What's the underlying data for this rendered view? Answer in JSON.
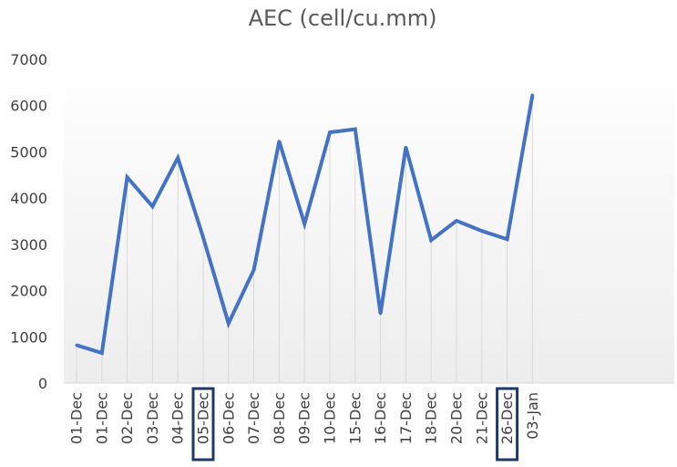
{
  "chart_data": {
    "type": "line",
    "title": "AEC (cell/cu.mm)",
    "xlabel": "",
    "ylabel": "",
    "ylim": [
      0,
      7000
    ],
    "yticks": [
      0,
      1000,
      2000,
      3000,
      4000,
      5000,
      6000,
      7000
    ],
    "grid": "vertical drop lines",
    "legend": "none",
    "categories": [
      "01-Dec",
      "01-Dec",
      "02-Dec",
      "03-Dec",
      "04-Dec",
      "05-Dec",
      "06-Dec",
      "07-Dec",
      "08-Dec",
      "09-Dec",
      "10-Dec",
      "15-Dec",
      "16-Dec",
      "17-Dec",
      "18-Dec",
      "20-Dec",
      "21-Dec",
      "26-Dec",
      "03-Jan"
    ],
    "series": [
      {
        "values": [
          820,
          650,
          4450,
          3820,
          4870,
          3150,
          1290,
          2450,
          5230,
          3440,
          5420,
          5490,
          1500,
          5100,
          3090,
          3510,
          3290,
          3110,
          6230
        ]
      }
    ],
    "highlighted_categories": [
      "05-Dec",
      "26-Dec"
    ],
    "colors": {
      "line": "#4472c4",
      "highlight_box": "#1f3864",
      "drop_line": "#d9d9d9",
      "text": "#404040",
      "title": "#595959"
    }
  }
}
